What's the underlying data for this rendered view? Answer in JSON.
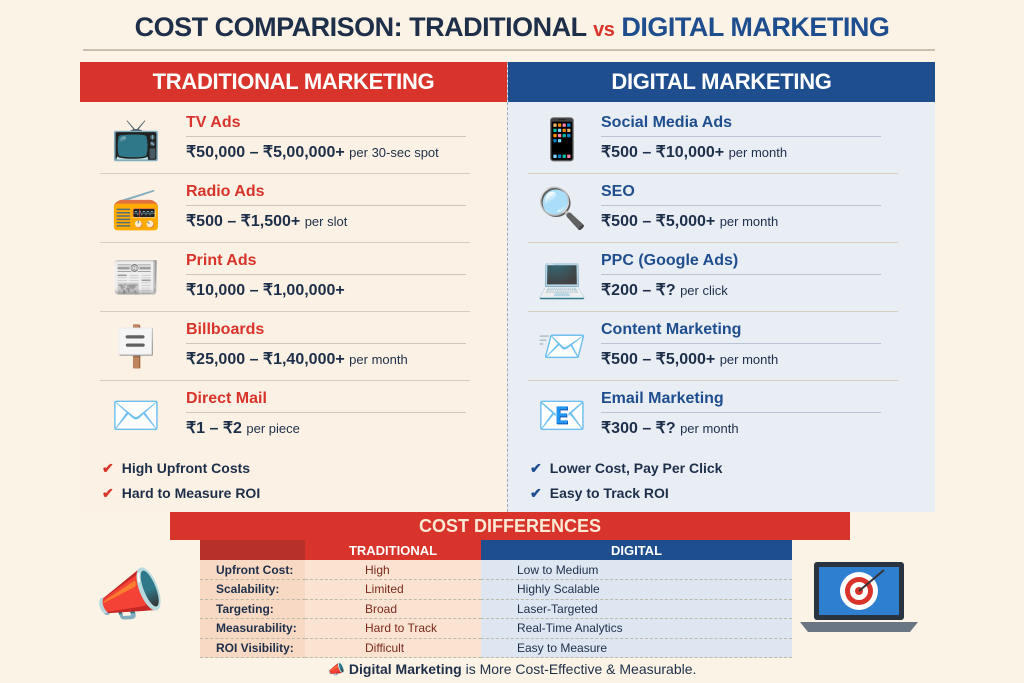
{
  "title": {
    "part1": "COST COMPARISON: TRADITIONAL",
    "vs": "vs",
    "part2": "DIGITAL MARKETING"
  },
  "traditional": {
    "heading": "TRADITIONAL MARKETING",
    "items": [
      {
        "name": "TV Ads",
        "price": "₹50,000 – ₹5,00,000+",
        "unit": "per 30-sec spot",
        "icon": "tv-icon",
        "glyph": "📺"
      },
      {
        "name": "Radio Ads",
        "price": "₹500 – ₹1,500+",
        "unit": "per slot",
        "icon": "radio-icon",
        "glyph": "📻"
      },
      {
        "name": "Print Ads",
        "price": "₹10,000 – ₹1,00,000+",
        "unit": "",
        "icon": "newspaper-icon",
        "glyph": "📰"
      },
      {
        "name": "Billboards",
        "price": "₹25,000 – ₹1,40,000+",
        "unit": "per month",
        "icon": "billboard-icon",
        "glyph": "🪧"
      },
      {
        "name": "Direct Mail",
        "price": "₹1 – ₹2",
        "unit": "per piece",
        "icon": "envelope-icon",
        "glyph": "✉️"
      }
    ],
    "checks": [
      "High Upfront Costs",
      "Hard to Measure ROI"
    ]
  },
  "digital": {
    "heading": "DIGITAL MARKETING",
    "items": [
      {
        "name": "Social Media Ads",
        "price": "₹500 – ₹10,000+",
        "unit": "per month",
        "icon": "social-media-icon",
        "glyph": "📱"
      },
      {
        "name": "SEO",
        "price": "₹500 – ₹5,000+",
        "unit": "per month",
        "icon": "seo-magnifier-icon",
        "glyph": "🔍"
      },
      {
        "name": "PPC (Google Ads)",
        "price": "₹200 – ₹?",
        "unit": "per click",
        "icon": "ppc-laptop-icon",
        "glyph": "💻"
      },
      {
        "name": "Content Marketing",
        "price": "₹500 – ₹5,000+",
        "unit": "per month",
        "icon": "content-envelope-icon",
        "glyph": "📨"
      },
      {
        "name": "Email Marketing",
        "price": "₹300 – ₹?",
        "unit": "per month",
        "icon": "email-icon",
        "glyph": "📧"
      }
    ],
    "checks": [
      "Lower Cost, Pay Per Click",
      "Easy to Track ROI"
    ]
  },
  "cost_differences": {
    "heading": "COST DIFFERENCES",
    "columns": [
      "",
      "TRADITIONAL",
      "DIGITAL"
    ],
    "rows": [
      [
        "Upfront Cost:",
        "High",
        "Low to Medium"
      ],
      [
        "Scalability:",
        "Limited",
        "Highly Scalable"
      ],
      [
        "Targeting:",
        "Broad",
        "Laser-Targeted"
      ],
      [
        "Measurability:",
        "Hard to Track",
        "Real-Time Analytics"
      ],
      [
        "ROI Visibility:",
        "Difficult",
        "Easy to Measure"
      ]
    ]
  },
  "footer": {
    "bold": "Digital Marketing",
    "rest": "is More Cost-Effective & Measurable."
  },
  "colors": {
    "red": "#d9342b",
    "blue": "#1f4e8f",
    "navy": "#1e2f4a",
    "cream": "#fbf3e6"
  }
}
